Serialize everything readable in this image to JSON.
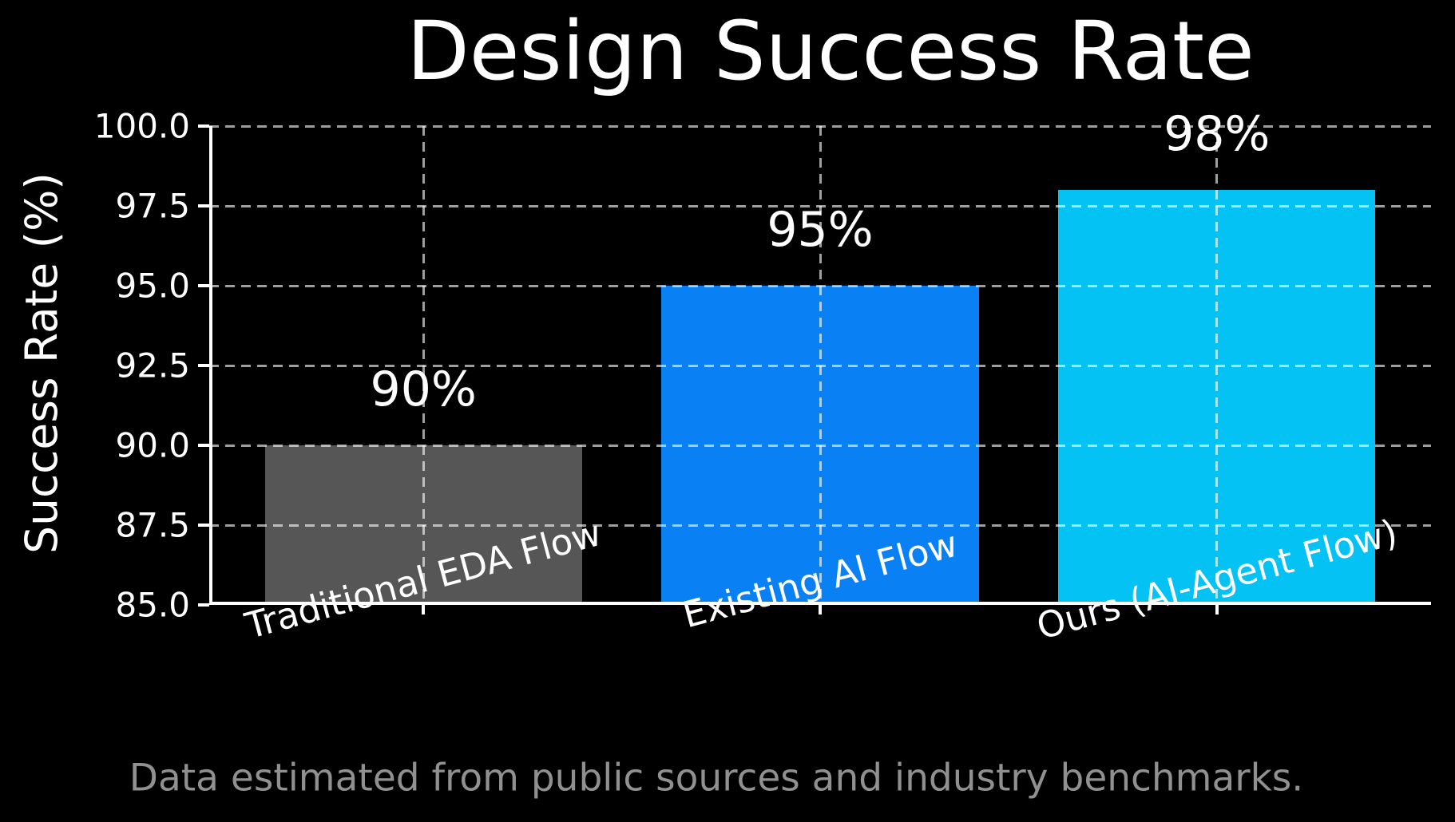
{
  "chart_data": {
    "type": "bar",
    "title": "Design Success Rate",
    "ylabel": "Success Rate (%)",
    "xlabel": "",
    "categories": [
      "Traditional EDA Flow",
      "Existing AI Flow",
      "Ours (AI-Agent Flow)"
    ],
    "values": [
      90,
      95,
      98
    ],
    "bar_labels": [
      "90%",
      "95%",
      "98%"
    ],
    "bar_colors": [
      "#565656",
      "#0a80f5",
      "#04c2f4"
    ],
    "ylim": [
      85,
      100
    ],
    "yticks": [
      100.0,
      97.5,
      95.0,
      92.5,
      90.0,
      87.5,
      85.0
    ],
    "ytick_labels": [
      "100.0",
      "97.5",
      "95.0",
      "92.5",
      "90.0",
      "87.5",
      "85.0"
    ],
    "grid": "dashed gridlines on both axes, drawn above bars",
    "legend": "none",
    "background_color": "#000000",
    "text_color": "#ffffff",
    "footnote": "Data estimated from public sources and industry benchmarks.",
    "footnote_color": "#909090"
  }
}
